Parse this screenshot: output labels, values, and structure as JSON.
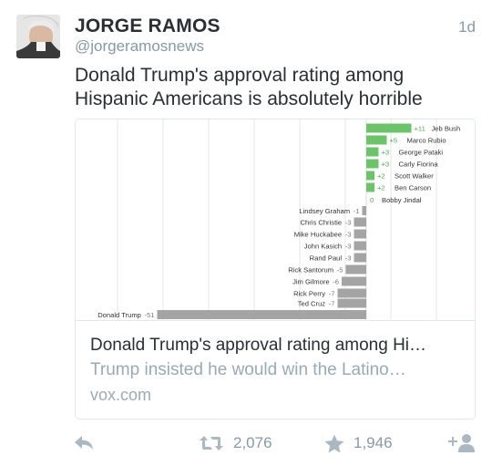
{
  "tweet": {
    "author_name": "JORGE RAMOS",
    "author_handle": "@jorgeramosnews",
    "timestamp": "1d",
    "text": "Donald Trump's approval rating among Hispanic Americans is absolutely horrible"
  },
  "card": {
    "title": "Donald Trump's approval rating among Hi…",
    "description": "Trump insisted he would win the Latino…",
    "domain": "vox.com"
  },
  "actions": {
    "retweet_count": "2,076",
    "favorite_count": "1,946"
  },
  "icons": {
    "reply": "reply-icon",
    "retweet": "retweet-icon",
    "favorite": "star-icon",
    "follow": "add-user-icon"
  },
  "colors": {
    "positive_bar": "#6cc36a",
    "negative_bar": "#a4a4a4",
    "positive_label": "#4caf50",
    "label_text": "#333333"
  },
  "chart_data": {
    "type": "bar",
    "orientation": "horizontal",
    "categories": [
      "Jeb Bush",
      "Marco Rubio",
      "George Pataki",
      "Carly Fiorina",
      "Scott Walker",
      "Ben Carson",
      "Bobby Jindal",
      "Lindsey Graham",
      "Chris Christie",
      "Mike Huckabee",
      "John Kasich",
      "Rand Paul",
      "Rick Santorum",
      "Jim Gilmore",
      "Rick Perry",
      "Ted Cruz",
      "Donald Trump"
    ],
    "values": [
      11,
      5,
      3,
      3,
      2,
      2,
      0,
      -1,
      -3,
      -3,
      -3,
      -3,
      -5,
      -6,
      -7,
      -7,
      -51
    ],
    "value_labels": [
      "+11",
      "+5",
      "+3",
      "+3",
      "+2",
      "+2",
      "0",
      "-1",
      "-3",
      "-3",
      "-3",
      "-3",
      "-5",
      "-6",
      "-7",
      "-7",
      "-51"
    ],
    "grid": true
  }
}
